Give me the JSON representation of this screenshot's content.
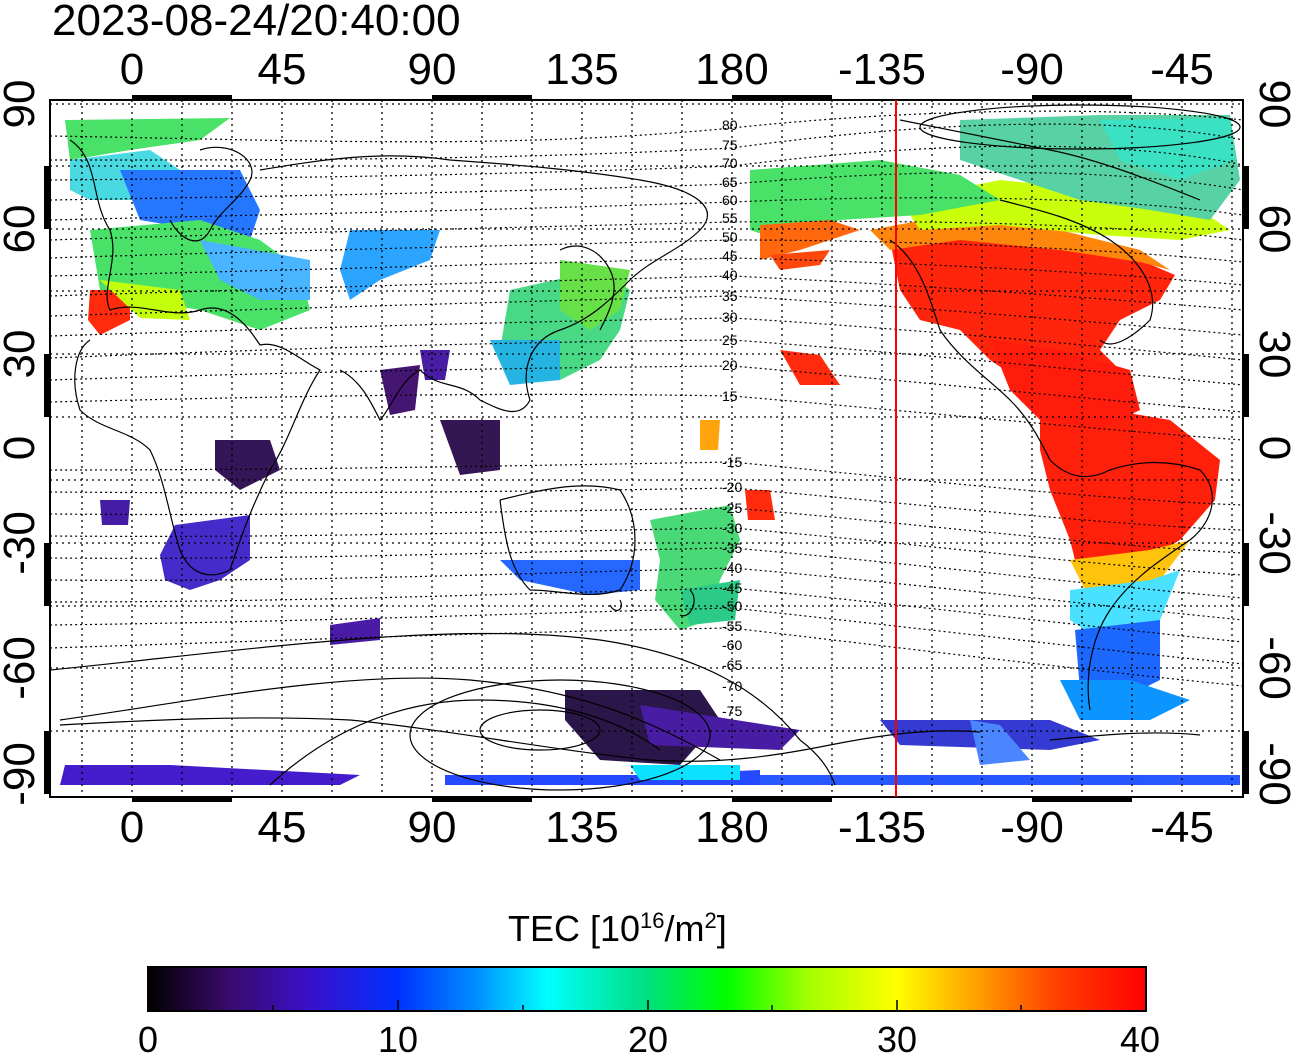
{
  "title": "2023-08-24/20:40:00",
  "map": {
    "lon_ticks": [
      "0",
      "45",
      "90",
      "135",
      "180",
      "-135",
      "-90",
      "-45"
    ],
    "lat_ticks_left": [
      "90",
      "60",
      "30",
      "0",
      "-30",
      "-60",
      "-90"
    ],
    "lat_ticks_right": [
      "90",
      "60",
      "30",
      "0",
      "-30",
      "-60",
      "-90"
    ],
    "magnetic_latitude_labels": [
      "80",
      "75",
      "70",
      "65",
      "60",
      "55",
      "50",
      "45",
      "40",
      "35",
      "30",
      "25",
      "20",
      "15",
      "-15",
      "-20",
      "-25",
      "-30",
      "-35",
      "-40",
      "-45",
      "-50",
      "-55",
      "-60",
      "-65",
      "-70",
      "-75"
    ],
    "terminator_line_color": "#ff0000",
    "lon_range": [
      -20,
      333
    ],
    "lat_range": [
      -90,
      90
    ]
  },
  "colorbar": {
    "title_main": "TEC  [10",
    "title_sup1": "16",
    "title_mid": "/m",
    "title_sup2": "2",
    "title_end": "]",
    "ticks": [
      "0",
      "10",
      "20",
      "30",
      "40"
    ],
    "range": [
      0,
      40
    ],
    "colors": [
      "#000000",
      "#3a0a6a",
      "#3a10c8",
      "#0030ff",
      "#0090ff",
      "#00ffff",
      "#00e080",
      "#00ff00",
      "#a0ff00",
      "#ffff00",
      "#ffa000",
      "#ff4000",
      "#ff0000"
    ]
  }
}
